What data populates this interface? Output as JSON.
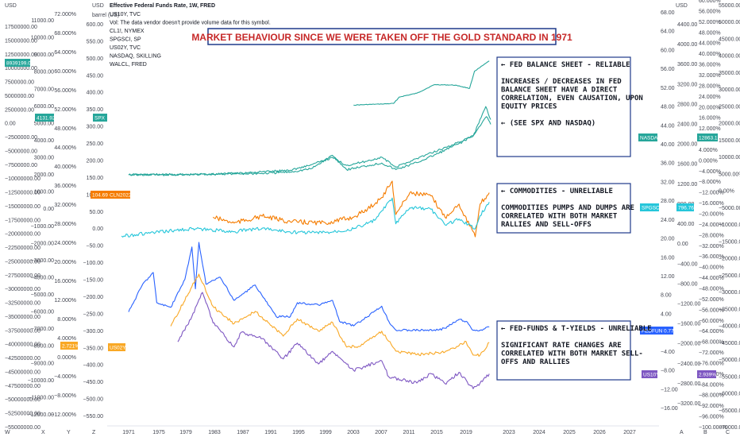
{
  "chart_data": {
    "type": "line",
    "title": "MARKET BEHAVIOUR SINCE WE WERE TAKEN OFF THE GOLD STANDARD IN 1971",
    "legend": {
      "header": "Effective Federal Funds Rate, 1W, FRED",
      "items": [
        "US10Y, TVC",
        "Vol: The data vendor doesn't provide volume data for this symbol.",
        "CL1!, NYMEX",
        "SPGSCI, SP",
        "US02Y, TVC",
        "NASDAQ, SKILLING",
        "WALCL, FRED"
      ]
    },
    "x_ticks": [
      "1971",
      "1975",
      "1979",
      "1983",
      "1987",
      "1991",
      "1995",
      "1999",
      "2003",
      "2007",
      "2011",
      "2015",
      "2019",
      "2023",
      "2024",
      "2025",
      "2026",
      "2027"
    ],
    "corner_labels": {
      "usd_left": "USD",
      "barrel_label": "barrel (US)",
      "usd_mid": "USD",
      "usd_right": "USD"
    },
    "left_axis_1": [
      "17500000.00",
      "15000000.00",
      "12500000.00",
      "10000000.00",
      "7500000.00",
      "5000000.00",
      "2500000.00",
      "0.00",
      "−2500000.00",
      "−5000000.00",
      "−7500000.00",
      "−10000000.00",
      "−12500000.00",
      "−15000000.00",
      "−17500000.00",
      "−20000000.00",
      "−22500000.00",
      "−25000000.00",
      "−27500000.00",
      "−30000000.00",
      "−32500000.00",
      "−35000000.00",
      "−37500000.00",
      "−40000000.00",
      "−42500000.00",
      "−45000000.00",
      "−47500000.00",
      "−50000000.00",
      "−52500000.00",
      "−55000000.00"
    ],
    "left_axis_2": [
      "11000.00",
      "10000.00",
      "9000.00",
      "8000.00",
      "7000.00",
      "6000.00",
      "5000.00",
      "4000.00",
      "3000.00",
      "2000.00",
      "1000.00",
      "0.00",
      "−1000.00",
      "−2000.00",
      "−3000.00",
      "−4000.00",
      "−5000.00",
      "−6000.00",
      "−7000.00",
      "−8000.00",
      "−9000.00",
      "−10000.00",
      "−11000.00",
      "−12000.00"
    ],
    "left_axis_3": [
      "72.000%",
      "68.000%",
      "64.000%",
      "60.000%",
      "56.000%",
      "52.000%",
      "48.000%",
      "44.000%",
      "40.000%",
      "36.000%",
      "32.000%",
      "28.000%",
      "24.000%",
      "20.000%",
      "16.000%",
      "12.000%",
      "8.000%",
      "4.000%",
      "0.000%",
      "−4.000%",
      "−8.000%",
      "−12.000%"
    ],
    "left_axis_4": [
      "600.00",
      "550.00",
      "500.00",
      "450.00",
      "400.00",
      "350.00",
      "300.00",
      "250.00",
      "200.00",
      "150.00",
      "100.00",
      "50.00",
      "0.00",
      "−50.00",
      "−100.00",
      "−150.00",
      "−200.00",
      "−250.00",
      "−300.00",
      "−350.00",
      "−400.00",
      "−450.00",
      "−500.00",
      "−550.00"
    ],
    "right_axis_1": [
      "68.00",
      "64.00",
      "60.00",
      "56.00",
      "52.00",
      "48.00",
      "44.00",
      "40.00",
      "36.00",
      "32.00",
      "28.00",
      "24.00",
      "20.00",
      "16.00",
      "12.00",
      "8.00",
      "4.00",
      "0.00",
      "−4.00",
      "−8.00",
      "−12.00",
      "−16.00"
    ],
    "right_axis_2": [
      "4400.00",
      "4000.00",
      "3600.00",
      "3200.00",
      "2800.00",
      "2400.00",
      "2000.00",
      "1600.00",
      "1200.00",
      "800.00",
      "400.00",
      "0.00",
      "−400.00",
      "−800.00",
      "−1200.00",
      "−1600.00",
      "−2000.00",
      "−2400.00",
      "−2800.00",
      "−3200.00"
    ],
    "right_axis_3": [
      "60.000%",
      "56.000%",
      "52.000%",
      "48.000%",
      "44.000%",
      "40.000%",
      "36.000%",
      "32.000%",
      "28.000%",
      "24.000%",
      "20.000%",
      "16.000%",
      "12.000%",
      "8.000%",
      "4.000%",
      "0.000%",
      "−4.000%",
      "−8.000%",
      "−12.000%",
      "−16.000%",
      "−20.000%",
      "−24.000%",
      "−28.000%",
      "−32.000%",
      "−36.000%",
      "−40.000%",
      "−44.000%",
      "−48.000%",
      "−52.000%",
      "−56.000%",
      "−60.000%",
      "−64.000%",
      "−68.000%",
      "−72.000%",
      "−76.000%",
      "−80.000%",
      "−84.000%",
      "−88.000%",
      "−92.000%",
      "−96.000%",
      "−100.000%"
    ],
    "right_axis_4": [
      "55000.00%",
      "50000.00%",
      "45000.00%",
      "40000.00%",
      "35000.00%",
      "30000.00%",
      "25000.00%",
      "20000.00%",
      "15000.00%",
      "10000.00%",
      "5000.00%",
      "0.00%",
      "−5000.00%",
      "−10000.00%",
      "−15000.00%",
      "−20000.00%",
      "−25000.00%",
      "−30000.00%",
      "−35000.00%",
      "−40000.00%",
      "−45000.00%",
      "−50000.00%",
      "−55000.00%",
      "−60000.00%",
      "−65000.00%",
      "−70000.00%"
    ],
    "price_tags": [
      {
        "name": "WALCL",
        "text": "8939199.00",
        "color": "#26a69a"
      },
      {
        "name": "NASDAQ-left",
        "text": "4131.92",
        "color": "#26a69a"
      },
      {
        "name": "SPX",
        "text": "SPX",
        "color": "#26a69a"
      },
      {
        "name": "CL1",
        "text": "104.69",
        "color": "#f57c00"
      },
      {
        "name": "CL1-symbol",
        "text": "CLN2022",
        "color": "#f57c00"
      },
      {
        "name": "US02Y-left",
        "text": "2.721%",
        "color": "#f9a825"
      },
      {
        "name": "US02Y-symbol",
        "text": "US02Y",
        "color": "#f9a825"
      },
      {
        "name": "NASDAQ-right",
        "text": "NASDAQ",
        "color": "#26a69a"
      },
      {
        "name": "NASDAQ-value",
        "text": "12863.1",
        "color": "#26a69a"
      },
      {
        "name": "SPGSCI",
        "text": "SPGSCI",
        "color": "#26c6da"
      },
      {
        "name": "SPGSCI-value",
        "text": "796.76",
        "color": "#26c6da"
      },
      {
        "name": "FEDFUNDS",
        "text": "FEDFUNDS",
        "color": "#2962ff"
      },
      {
        "name": "FEDFUNDS-value",
        "text": "0.77",
        "color": "#2962ff"
      },
      {
        "name": "US10Y",
        "text": "US10Y",
        "color": "#7e57c2"
      },
      {
        "name": "US10Y-value",
        "text": "2.939%",
        "color": "#7e57c2"
      }
    ],
    "annotations": [
      {
        "name": "fed-balance",
        "lines": [
          "← FED BALANCE SHEET - RELIABLE",
          "",
          "INCREASES / DECREASES IN FED",
          "BALANCE SHEET HAVE A DIRECT",
          "CORRELATION, EVEN CAUSATION, UPON",
          "EQUITY PRICES",
          "",
          "← (SEE SPX AND NASDAQ)"
        ]
      },
      {
        "name": "commodities",
        "lines": [
          "← COMMODITIES - UNRELIABLE",
          "",
          "COMMODITIES PUMPS AND DUMPS ARE",
          "CORRELATED WITH BOTH MARKET",
          "RALLIES AND SELL-OFFS"
        ]
      },
      {
        "name": "fed-funds",
        "lines": [
          "← FED-FUNDS & T-YIELDS - UNRELIABLE",
          "",
          "SIGNIFICANT RATE CHANGES ARE",
          "CORRELATED WITH BOTH MARKET SELL-",
          "OFFS AND RALLIES"
        ]
      }
    ],
    "bottom_letters": [
      "W",
      "X",
      "Y",
      "Z",
      "A",
      "B",
      "C"
    ],
    "series": [
      {
        "name": "WALCL",
        "color": "#26a69a",
        "x": [
          2003.0,
          2007.0,
          2008.7,
          2009.5,
          2012.0,
          2014.5,
          2017.5,
          2019.5,
          2020.2,
          2021.0,
          2022.3
        ],
        "y": [
          0.7,
          0.9,
          1.0,
          2.2,
          2.9,
          4.5,
          4.4,
          3.8,
          7.0,
          7.7,
          8.9
        ]
      },
      {
        "name": "NASDAQ",
        "color": "#26a69a",
        "x": [
          1971,
          1980,
          1985,
          1990,
          1994,
          1997,
          2000,
          2002,
          2005,
          2007,
          2009,
          2012,
          2015,
          2018,
          2020,
          2021.8,
          2022.5
        ],
        "y": [
          100,
          150,
          300,
          400,
          740,
          1500,
          4600,
          1300,
          2200,
          2800,
          1300,
          2900,
          5000,
          7300,
          9000,
          15800,
          12800
        ]
      },
      {
        "name": "SPX",
        "color": "#26a69a",
        "x": [
          1971,
          1980,
          1985,
          1990,
          1994,
          1997,
          2000,
          2002,
          2005,
          2007,
          2009,
          2012,
          2015,
          2018,
          2020,
          2021.9,
          2022.5
        ],
        "y": [
          95,
          110,
          180,
          330,
          460,
          900,
          1470,
          850,
          1200,
          1500,
          700,
          1400,
          2050,
          2700,
          3200,
          4750,
          4130
        ]
      },
      {
        "name": "CL1",
        "color": "#f57c00",
        "x": [
          1983,
          1986,
          1990,
          1994,
          1999,
          2003,
          2005,
          2007,
          2008.5,
          2009,
          2011,
          2014,
          2016,
          2018,
          2020.3,
          2021,
          2022.3
        ],
        "y": [
          30,
          12,
          33,
          16,
          12,
          30,
          55,
          90,
          140,
          38,
          105,
          95,
          30,
          70,
          -30,
          70,
          104.7
        ]
      },
      {
        "name": "SPGSCI",
        "color": "#26c6da",
        "x": [
          1970,
          1980,
          1986,
          1990,
          1994,
          1999,
          2003,
          2006,
          2008.5,
          2009,
          2011,
          2014,
          2016,
          2018,
          2020.3,
          2021,
          2022.3
        ],
        "y": [
          100,
          250,
          190,
          260,
          180,
          170,
          250,
          420,
          880,
          350,
          680,
          650,
          330,
          450,
          250,
          520,
          797
        ]
      },
      {
        "name": "FEDFUNDS",
        "color": "#2962ff",
        "x": [
          1971,
          1973,
          1974.5,
          1975,
          1977,
          1979,
          1980,
          1980.5,
          1981,
          1982,
          1984,
          1986,
          1989,
          1992,
          1994,
          1995,
          1998,
          2000,
          2001,
          2003,
          2005,
          2007,
          2008,
          2009,
          2015,
          2016,
          2018,
          2019,
          2020,
          2021,
          2022.3
        ],
        "y": [
          4.0,
          10.0,
          12.5,
          6.0,
          5.0,
          11.0,
          18.0,
          9.0,
          19.0,
          10.0,
          11.5,
          6.5,
          9.8,
          3.0,
          3.0,
          6.0,
          5.5,
          6.5,
          2.0,
          1.0,
          3.0,
          5.25,
          2.0,
          0.1,
          0.1,
          0.5,
          2.4,
          2.0,
          0.05,
          0.08,
          0.77
        ]
      },
      {
        "name": "US02Y",
        "color": "#f9a825",
        "x": [
          1977,
          1980,
          1981,
          1983,
          1986,
          1989,
          1993,
          1995,
          1998,
          2000,
          2002,
          2004,
          2007,
          2009,
          2012,
          2016,
          2019,
          2020,
          2021,
          2022.3
        ],
        "y": [
          6.0,
          14.0,
          16.5,
          10.0,
          6.5,
          9.0,
          4.0,
          7.5,
          5.0,
          6.8,
          1.8,
          2.0,
          5.0,
          1.0,
          0.25,
          0.8,
          2.9,
          0.2,
          0.2,
          2.72
        ]
      },
      {
        "name": "US10Y",
        "color": "#7e57c2",
        "x": [
          1978,
          1980,
          1981.5,
          1983,
          1986,
          1987,
          1990,
          1993,
          1995,
          1998,
          2000,
          2003,
          2007,
          2008,
          2012,
          2014,
          2016,
          2018,
          2020,
          2021,
          2022.3
        ],
        "y": [
          8.0,
          12.0,
          15.8,
          11.0,
          7.2,
          9.5,
          8.5,
          5.3,
          7.8,
          4.5,
          6.5,
          3.5,
          5.0,
          2.5,
          1.5,
          3.0,
          1.4,
          3.2,
          0.6,
          1.5,
          2.94
        ]
      }
    ]
  }
}
